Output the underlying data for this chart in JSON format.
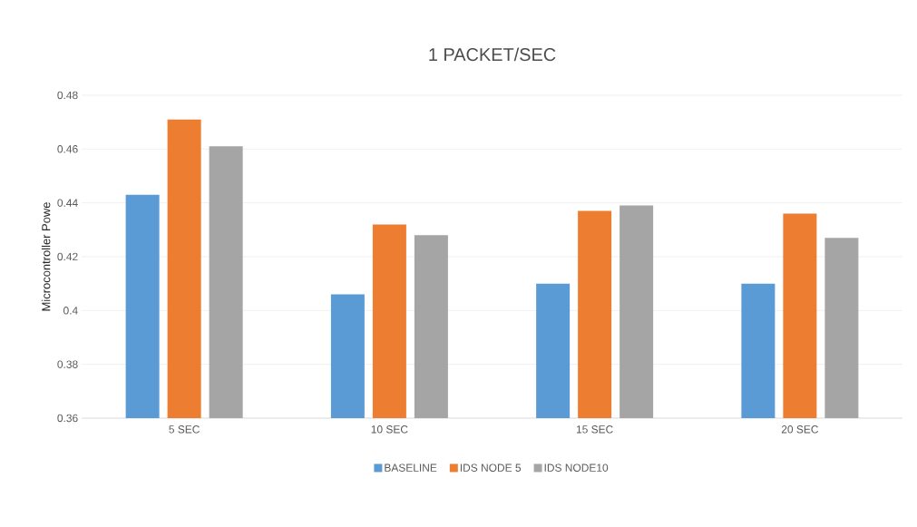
{
  "chart_data": {
    "type": "bar",
    "title": "1 PACKET/SEC",
    "ylabel": "Microcontroller Powe",
    "categories": [
      "5 SEC",
      "10 SEC",
      "15 SEC",
      "20 SEC"
    ],
    "series": [
      {
        "name": "BASELINE",
        "color": "#5b9bd5",
        "values": [
          0.443,
          0.406,
          0.41,
          0.41
        ]
      },
      {
        "name": "IDS NODE 5",
        "color": "#ed7d31",
        "values": [
          0.471,
          0.432,
          0.437,
          0.436
        ]
      },
      {
        "name": "IDS NODE10",
        "color": "#a5a5a5",
        "values": [
          0.461,
          0.428,
          0.439,
          0.427
        ]
      }
    ],
    "ylim": [
      0.36,
      0.48
    ],
    "yticks": [
      0.36,
      0.38,
      0.4,
      0.42,
      0.44,
      0.46,
      0.48
    ],
    "grid": "y",
    "legend": "bottom"
  }
}
